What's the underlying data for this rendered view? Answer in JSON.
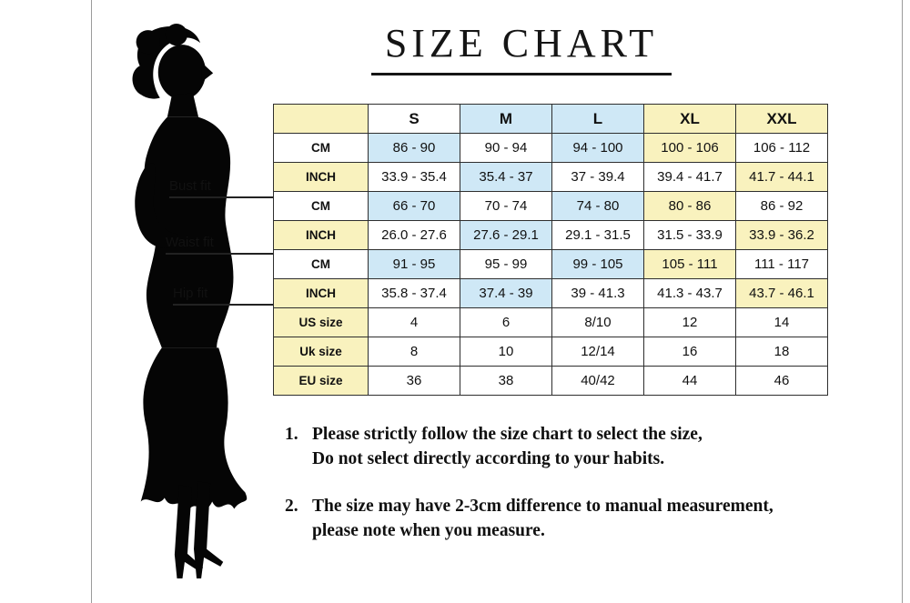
{
  "page": {
    "title": "SIZE CHART"
  },
  "fit_labels": [
    {
      "id": "bust",
      "label": "Bust fit"
    },
    {
      "id": "waist",
      "label": "Waist fit"
    },
    {
      "id": "hip",
      "label": "Hip fit"
    }
  ],
  "chart_data": {
    "type": "table",
    "title": "SIZE CHART",
    "columns": [
      "",
      "S",
      "M",
      "L",
      "XL",
      "XXL"
    ],
    "rows": [
      {
        "label": "CM",
        "fit": "Bust fit",
        "values": [
          "86 - 90",
          "90 - 94",
          "94 - 100",
          "100 - 106",
          "106 - 112"
        ]
      },
      {
        "label": "INCH",
        "fit": "Bust fit",
        "values": [
          "33.9 - 35.4",
          "35.4 - 37",
          "37 - 39.4",
          "39.4 - 41.7",
          "41.7 - 44.1"
        ]
      },
      {
        "label": "CM",
        "fit": "Waist fit",
        "values": [
          "66 - 70",
          "70 - 74",
          "74 - 80",
          "80 - 86",
          "86 - 92"
        ]
      },
      {
        "label": "INCH",
        "fit": "Waist fit",
        "values": [
          "26.0 - 27.6",
          "27.6 - 29.1",
          "29.1 - 31.5",
          "31.5 - 33.9",
          "33.9 - 36.2"
        ]
      },
      {
        "label": "CM",
        "fit": "Hip fit",
        "values": [
          "91 - 95",
          "95 - 99",
          "99 - 105",
          "105 - 111",
          "111 - 117"
        ]
      },
      {
        "label": "INCH",
        "fit": "Hip fit",
        "values": [
          "35.8 - 37.4",
          "37.4 - 39",
          "39 - 41.3",
          "41.3 - 43.7",
          "43.7 - 46.1"
        ]
      },
      {
        "label": "US size",
        "fit": "",
        "values": [
          "4",
          "6",
          "8/10",
          "12",
          "14"
        ]
      },
      {
        "label": "Uk size",
        "fit": "",
        "values": [
          "8",
          "10",
          "12/14",
          "16",
          "18"
        ]
      },
      {
        "label": "EU size",
        "fit": "",
        "values": [
          "36",
          "38",
          "40/42",
          "44",
          "46"
        ]
      }
    ],
    "cell_colors": {
      "palette": {
        "Y": "#f9f2be",
        "B": "#cfe8f6",
        "W": "#ffffff"
      },
      "header": [
        "Y",
        "W",
        "B",
        "B",
        "Y",
        "Y"
      ],
      "rows": [
        [
          "W",
          "B",
          "W",
          "B",
          "Y",
          "W"
        ],
        [
          "Y",
          "W",
          "B",
          "W",
          "W",
          "Y"
        ],
        [
          "W",
          "B",
          "W",
          "B",
          "Y",
          "W"
        ],
        [
          "Y",
          "W",
          "B",
          "W",
          "W",
          "Y"
        ],
        [
          "W",
          "B",
          "W",
          "B",
          "Y",
          "W"
        ],
        [
          "Y",
          "W",
          "B",
          "W",
          "W",
          "Y"
        ],
        [
          "Y",
          "W",
          "W",
          "W",
          "W",
          "W"
        ],
        [
          "Y",
          "W",
          "W",
          "W",
          "W",
          "W"
        ],
        [
          "Y",
          "W",
          "W",
          "W",
          "W",
          "W"
        ]
      ]
    }
  },
  "notes": [
    {
      "number": "1.",
      "lines": [
        "Please strictly follow the size chart to select the size,",
        "Do not select directly according to your habits."
      ]
    },
    {
      "number": "2.",
      "lines": [
        "The size may have 2-3cm difference  to manual measurement,",
        "please note when you measure."
      ]
    }
  ],
  "silhouette": {
    "name": "woman-figure",
    "color": "#050505"
  }
}
